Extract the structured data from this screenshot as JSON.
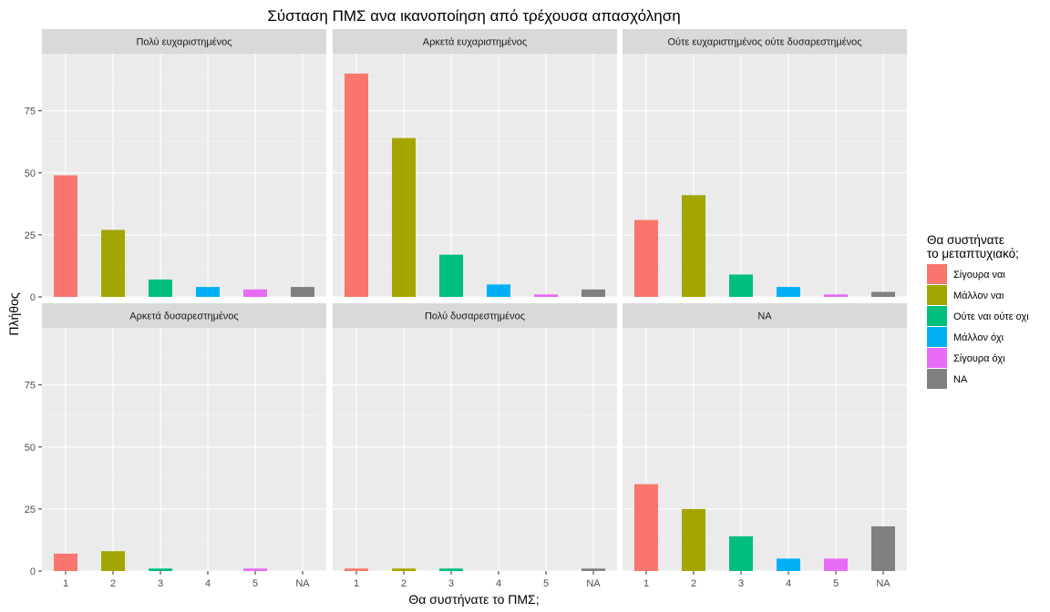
{
  "chart_data": {
    "type": "bar",
    "title": "Σύσταση ΠΜΣ ανα ικανοποίηση από τρέχουσα απασχόληση",
    "xlabel": "Θα συστήνατε το ΠΜΣ;",
    "ylabel": "Πλήθος",
    "categories": [
      "1",
      "2",
      "3",
      "4",
      "5",
      "NA"
    ],
    "ylim": [
      0,
      98
    ],
    "yticks": [
      0,
      25,
      50,
      75
    ],
    "grid": true,
    "legend": {
      "title": [
        "Θα συστήνατε",
        "το μεταπτυχιακό;"
      ],
      "placement": "right",
      "items": [
        {
          "label": "Σίγουρα ναι",
          "color": "#F8766D"
        },
        {
          "label": "Μάλλον ναι",
          "color": "#A3A500"
        },
        {
          "label": "Ούτε ναι ούτε οχι",
          "color": "#00BF7D"
        },
        {
          "label": "Μάλλον όχι",
          "color": "#00B0F6"
        },
        {
          "label": "Σίγουρα όχι",
          "color": "#E76BF3"
        },
        {
          "label": "NA",
          "color": "#808080"
        }
      ]
    },
    "facets": [
      {
        "label": "Πολύ ευχαριστημένος",
        "values": [
          49,
          27,
          7,
          4,
          3,
          4
        ]
      },
      {
        "label": "Αρκετά ευχαριστημένος",
        "values": [
          90,
          64,
          17,
          5,
          1,
          3
        ]
      },
      {
        "label": "Ούτε ευχαριστημένος ούτε δυσαρεστημένος",
        "values": [
          31,
          41,
          9,
          4,
          1,
          2
        ]
      },
      {
        "label": "Αρκετά δυσαρεστημένος",
        "values": [
          7,
          8,
          1,
          null,
          1,
          null
        ]
      },
      {
        "label": "Πολύ δυσαρεστημένος",
        "values": [
          1,
          1,
          1,
          null,
          null,
          1
        ]
      },
      {
        "label": "NA",
        "values": [
          35,
          25,
          14,
          5,
          5,
          18
        ]
      }
    ]
  }
}
